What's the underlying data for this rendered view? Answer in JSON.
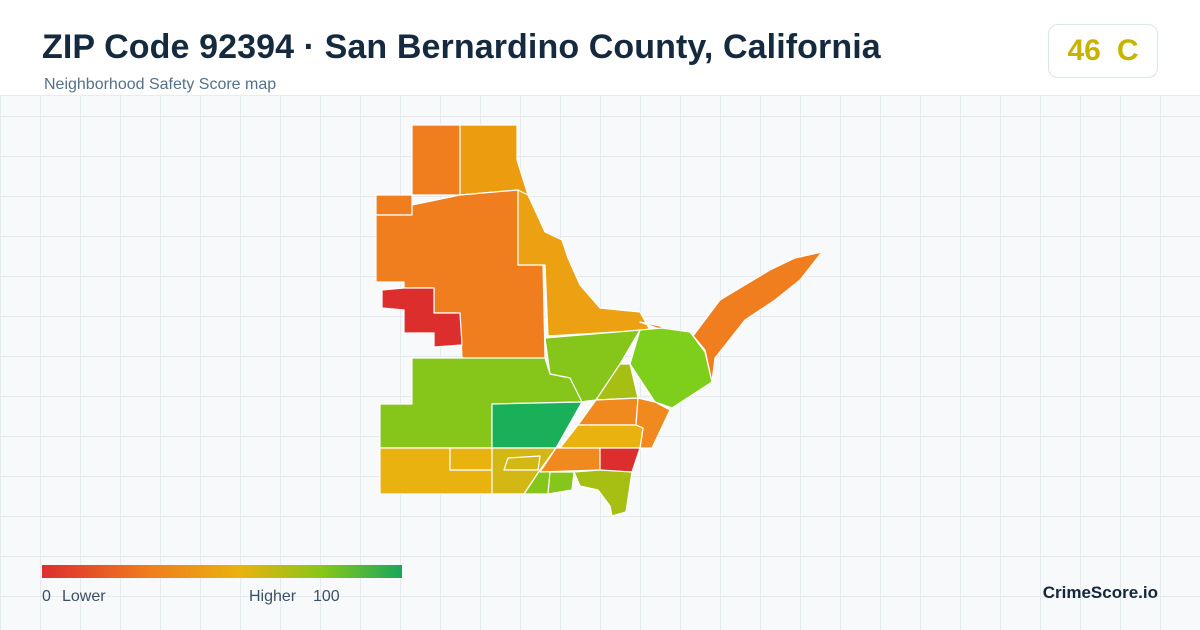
{
  "header": {
    "title": "ZIP Code 92394 · San Bernardino County, California",
    "subtitle": "Neighborhood Safety Score map"
  },
  "score": {
    "value": "46",
    "grade": "C",
    "color": "#c9b300"
  },
  "legend": {
    "min_label": "0",
    "low_label": "Lower",
    "high_label": "Higher",
    "max_label": "100",
    "colors": [
      "#dd2e2e",
      "#f07d1e",
      "#e9b20f",
      "#86c61a",
      "#1aa75a"
    ]
  },
  "map": {
    "border_color": "#ffffff",
    "background_color": "#f7f9fa",
    "grid_color": "#e4ebef"
  },
  "brand": "CrimeScore.io"
}
